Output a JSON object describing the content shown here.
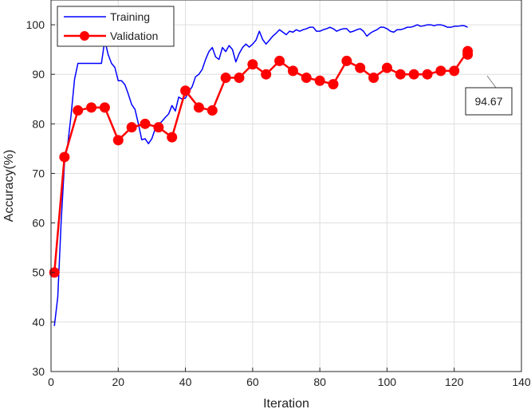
{
  "chart_data": {
    "type": "line",
    "xlabel": "Iteration",
    "ylabel": "Accuracy(%)",
    "xlim": [
      0,
      140
    ],
    "ylim": [
      30,
      105
    ],
    "xticks": [
      0,
      20,
      40,
      60,
      80,
      100,
      120,
      140
    ],
    "yticks": [
      30,
      40,
      50,
      60,
      70,
      80,
      90,
      100
    ],
    "grid": true,
    "legend_position": "top-left",
    "series": [
      {
        "name": "Training",
        "color": "#0000ff",
        "marker": "none",
        "x": [
          1,
          2,
          3,
          4,
          5,
          6,
          7,
          8,
          9,
          10,
          11,
          12,
          13,
          14,
          15,
          16,
          17,
          18,
          19,
          20,
          21,
          22,
          23,
          24,
          25,
          26,
          27,
          28,
          29,
          30,
          31,
          32,
          33,
          34,
          35,
          36,
          37,
          38,
          39,
          40,
          41,
          42,
          43,
          44,
          45,
          46,
          47,
          48,
          49,
          50,
          51,
          52,
          53,
          54,
          55,
          56,
          57,
          58,
          59,
          60,
          61,
          62,
          63,
          64,
          65,
          66,
          67,
          68,
          69,
          70,
          71,
          72,
          73,
          74,
          75,
          76,
          77,
          78,
          79,
          80,
          81,
          82,
          83,
          84,
          85,
          86,
          87,
          88,
          89,
          90,
          91,
          92,
          93,
          94,
          95,
          96,
          97,
          98,
          99,
          100,
          101,
          102,
          103,
          104,
          105,
          106,
          107,
          108,
          109,
          110,
          111,
          112,
          113,
          114,
          115,
          116,
          117,
          118,
          119,
          120,
          121,
          122,
          123,
          124
        ],
        "values": [
          39.2,
          45.0,
          60.0,
          72.0,
          76.0,
          82.0,
          89.0,
          92.2,
          92.2,
          92.2,
          92.2,
          92.2,
          92.2,
          92.2,
          92.2,
          96.9,
          94.0,
          92.2,
          91.4,
          88.7,
          88.7,
          87.9,
          86.0,
          83.9,
          82.9,
          80.0,
          76.8,
          77.0,
          76.0,
          77.0,
          79.0,
          79.8,
          80.5,
          81.3,
          82.0,
          83.7,
          82.6,
          85.4,
          85.0,
          85.2,
          86.5,
          87.5,
          89.5,
          90.0,
          91.0,
          93.0,
          94.6,
          95.4,
          93.5,
          93.0,
          95.4,
          94.6,
          95.8,
          95.0,
          92.5,
          94.2,
          95.4,
          96.1,
          95.5,
          96.1,
          96.9,
          98.7,
          97.0,
          96.1,
          96.9,
          97.7,
          98.3,
          99.0,
          98.5,
          98.0,
          98.7,
          98.5,
          99.0,
          98.7,
          99.0,
          99.2,
          99.5,
          99.5,
          98.7,
          98.7,
          99.0,
          99.2,
          99.5,
          99.2,
          98.7,
          99.0,
          99.2,
          99.2,
          98.5,
          98.7,
          99.0,
          99.2,
          98.7,
          97.7,
          98.3,
          98.7,
          99.0,
          99.5,
          99.5,
          99.2,
          98.7,
          98.5,
          99.0,
          99.0,
          99.2,
          99.5,
          99.5,
          99.7,
          100.0,
          99.7,
          99.8,
          100.0,
          100.0,
          99.8,
          100.0,
          100.0,
          99.8,
          99.5,
          99.5,
          99.7,
          99.7,
          99.8,
          99.8,
          99.5
        ]
      },
      {
        "name": "Validation",
        "color": "#ff0000",
        "marker": "circle",
        "x": [
          1,
          4,
          8,
          12,
          16,
          20,
          24,
          28,
          32,
          36,
          40,
          44,
          48,
          52,
          56,
          60,
          64,
          68,
          72,
          76,
          80,
          84,
          88,
          92,
          96,
          100,
          104,
          108,
          112,
          116,
          120,
          124,
          124
        ],
        "values": [
          50.0,
          73.3,
          82.7,
          83.3,
          83.3,
          76.7,
          79.3,
          80.0,
          79.3,
          77.3,
          86.7,
          83.3,
          82.7,
          89.3,
          89.3,
          92.0,
          90.0,
          92.7,
          90.7,
          89.3,
          88.7,
          88.0,
          92.7,
          91.3,
          89.3,
          91.3,
          90.0,
          90.0,
          90.0,
          90.7,
          90.7,
          94.67,
          94.0
        ]
      }
    ],
    "annotations": [
      {
        "text": "94.67",
        "x": 124,
        "y": 94.67
      }
    ]
  }
}
